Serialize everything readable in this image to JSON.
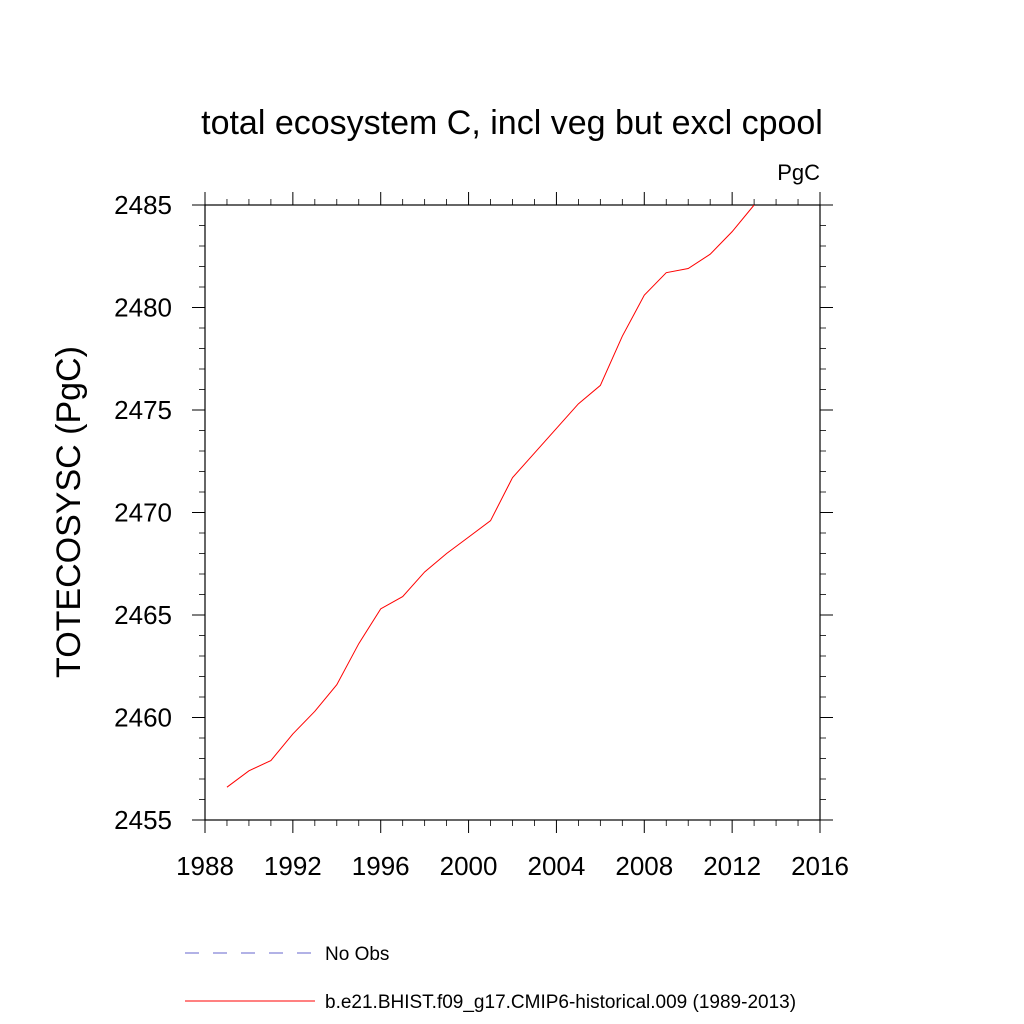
{
  "chart_data": {
    "type": "line",
    "title": "total ecosystem C, incl veg but excl cpool",
    "units_label": "PgC",
    "ylabel": "TOTECOSYSC  (PgC)",
    "xlabel": "",
    "xlim": [
      1988,
      2016
    ],
    "ylim": [
      2455,
      2485
    ],
    "x_ticks": [
      1988,
      1992,
      1996,
      2000,
      2004,
      2008,
      2012,
      2016
    ],
    "y_ticks": [
      2455,
      2460,
      2465,
      2470,
      2475,
      2480,
      2485
    ],
    "x_tick_labels": [
      "1988",
      "1992",
      "1996",
      "2000",
      "2004",
      "2008",
      "2012",
      "2016"
    ],
    "y_tick_labels": [
      "2455",
      "2460",
      "2465",
      "2470",
      "2475",
      "2480",
      "2485"
    ],
    "grid": false,
    "legend_position": "bottom",
    "series": [
      {
        "name": "No Obs",
        "color": "#6666cc",
        "dashed": true,
        "x": [],
        "y": []
      },
      {
        "name": "b.e21.BHIST.f09_g17.CMIP6-historical.009 (1989-2013)",
        "color": "#ff0000",
        "dashed": false,
        "x": [
          1989,
          1990,
          1991,
          1992,
          1993,
          1994,
          1995,
          1996,
          1997,
          1998,
          1999,
          2000,
          2001,
          2002,
          2003,
          2004,
          2005,
          2006,
          2007,
          2008,
          2009,
          2010,
          2011,
          2012,
          2013
        ],
        "y": [
          2456.6,
          2457.4,
          2457.9,
          2459.2,
          2460.3,
          2461.6,
          2463.6,
          2465.3,
          2465.9,
          2467.1,
          2468.0,
          2468.8,
          2469.6,
          2471.7,
          2472.9,
          2474.1,
          2475.3,
          2476.2,
          2478.6,
          2480.6,
          2481.7,
          2481.9,
          2482.6,
          2483.7,
          2485.0
        ]
      }
    ]
  }
}
